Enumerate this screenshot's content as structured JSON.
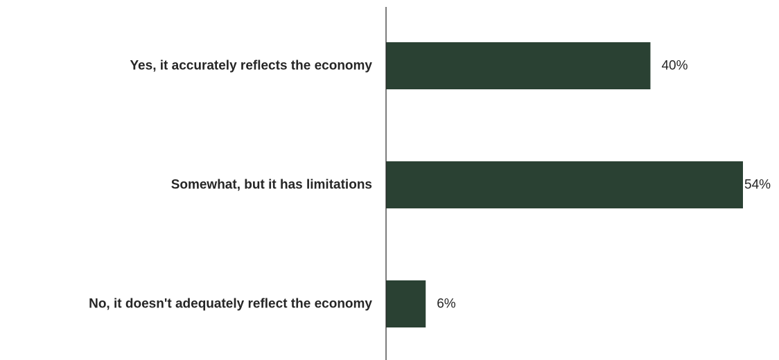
{
  "chart_data": {
    "type": "bar",
    "orientation": "horizontal",
    "categories": [
      "Yes, it accurately reflects the economy",
      "Somewhat, but it has limitations",
      "No, it doesn't adequately reflect the economy"
    ],
    "values": [
      40,
      54,
      6
    ],
    "value_labels": [
      "40%",
      "54%",
      "6%"
    ],
    "unit": "%",
    "xlim": [
      0,
      54
    ],
    "title": "",
    "xlabel": "",
    "ylabel": "",
    "grid": false,
    "legend": "none",
    "bar_color": "#2a4133",
    "axis_color": "#262626",
    "text_color": "#262626"
  }
}
